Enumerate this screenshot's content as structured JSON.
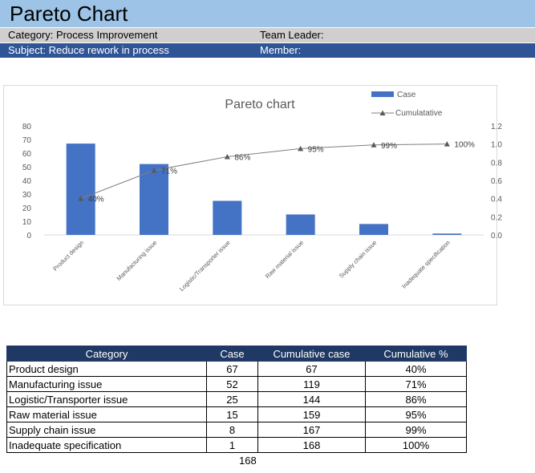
{
  "header": {
    "title": "Pareto Chart",
    "category_label": "Category: Process Improvement",
    "team_leader_label": "Team Leader:",
    "subject_label": "Subject: Reduce rework in process",
    "member_label": "Member:"
  },
  "colors": {
    "title_bg": "#9dc3e6",
    "row_gray": "#d0cece",
    "row_blue": "#2f5597",
    "bar": "#4472c4",
    "line": "#7f7f7f",
    "table_header": "#1f3864"
  },
  "chart_data": {
    "type": "bar",
    "title": "Pareto chart",
    "categories": [
      "Product design",
      "Manufacturing issue",
      "Logistic/Transporter issue",
      "Raw material issue",
      "Supply chain issue",
      "Inadequate specification"
    ],
    "series": [
      {
        "name": "Case",
        "type": "bar",
        "axis": "left",
        "values": [
          67,
          52,
          25,
          15,
          8,
          1
        ]
      },
      {
        "name": "Cumulatative",
        "type": "line",
        "axis": "right",
        "values": [
          0.4,
          0.71,
          0.86,
          0.95,
          0.99,
          1.0
        ],
        "labels": [
          "40%",
          "71%",
          "86%",
          "95%",
          "99%",
          "100%"
        ]
      }
    ],
    "y_left": {
      "min": 0,
      "max": 80,
      "ticks": [
        "0",
        "10",
        "20",
        "30",
        "40",
        "50",
        "60",
        "70",
        "80"
      ]
    },
    "y_right": {
      "min": 0,
      "max": 1.2,
      "ticks": [
        "0.0",
        "0.2",
        "0.4",
        "0.6",
        "0.8",
        "1.0",
        "1.2"
      ]
    },
    "legend_position": "top-right",
    "grid": false
  },
  "table": {
    "headers": [
      "Category",
      "Case",
      "Cumulative case",
      "Cumulative %"
    ],
    "rows": [
      [
        "Product design",
        "67",
        "67",
        "40%"
      ],
      [
        "Manufacturing issue",
        "52",
        "119",
        "71%"
      ],
      [
        "Logistic/Transporter issue",
        "25",
        "144",
        "86%"
      ],
      [
        "Raw material issue",
        "15",
        "159",
        "95%"
      ],
      [
        "Supply chain issue",
        "8",
        "167",
        "99%"
      ],
      [
        "Inadequate specification",
        "1",
        "168",
        "100%"
      ]
    ],
    "total": "168"
  }
}
